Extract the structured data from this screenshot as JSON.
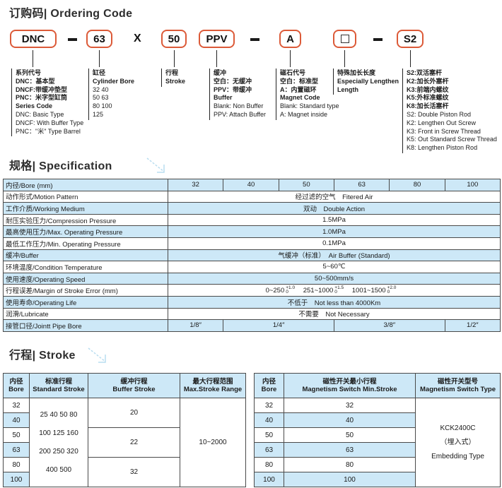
{
  "ordering": {
    "title": "订购码| Ordering Code",
    "code": {
      "p1": "DNC",
      "sep1": "–",
      "p2": "63",
      "sep_x": "X",
      "p3": "50",
      "p4": "PPV",
      "sep2": "–",
      "p5": "A",
      "p6": "□",
      "sep3": "–",
      "p7": "S2"
    },
    "columns": [
      {
        "lines": [
          {
            "text": "系列代号",
            "bold": true
          },
          {
            "text": "DNC：基本型",
            "bold": true
          },
          {
            "text": "DNCF:带缓冲垫型",
            "bold": true
          },
          {
            "text": "PNC：米字型缸筒",
            "bold": true
          },
          {
            "text": "Series Code",
            "bold": true
          },
          {
            "text": "DNC: Basic Type"
          },
          {
            "text": "DNCF: With Buffer Type"
          },
          {
            "text": "PNC：\"米\" Type Barrel"
          }
        ]
      },
      {
        "lines": [
          {
            "text": "缸径",
            "bold": true
          },
          {
            "text": "Cylinder Bore",
            "bold": true
          },
          {
            "text": "32  40"
          },
          {
            "text": "50  63"
          },
          {
            "text": "80  100"
          },
          {
            "text": "125"
          }
        ]
      },
      {
        "lines": [
          {
            "text": "行程",
            "bold": true
          },
          {
            "text": "Stroke",
            "bold": true
          }
        ]
      },
      {
        "lines": [
          {
            "text": "缓冲",
            "bold": true
          },
          {
            "text": "空白：无缓冲",
            "bold": true
          },
          {
            "text": "PPV：带缓冲",
            "bold": true
          },
          {
            "text": "Buffer",
            "bold": true
          },
          {
            "text": "Blank: Non Buffer"
          },
          {
            "text": "PPV: Attach Buffer"
          }
        ]
      },
      {
        "lines": [
          {
            "text": "磁石代号",
            "bold": true
          },
          {
            "text": "空白：标准型",
            "bold": true
          },
          {
            "text": "A：内置磁环",
            "bold": true
          },
          {
            "text": "Magnet Code",
            "bold": true
          },
          {
            "text": "Blank: Standard type"
          },
          {
            "text": "A: Magnet inside"
          }
        ]
      },
      {
        "lines": [
          {
            "text": "特殊加长长度",
            "bold": true
          },
          {
            "text": "Especially Lengthen",
            "bold": true
          },
          {
            "text": "Length",
            "bold": true
          }
        ]
      },
      {
        "lines": [
          {
            "text": "S2:双活塞杆",
            "bold": true
          },
          {
            "text": "K2:加长外塞杆",
            "bold": true
          },
          {
            "text": "K3:前端内螺纹",
            "bold": true
          },
          {
            "text": "K5:外标准螺纹",
            "bold": true
          },
          {
            "text": "K8:加长活塞杆",
            "bold": true
          },
          {
            "text": "S2: Double Piston Rod"
          },
          {
            "text": "K2: Lengthen Out Screw"
          },
          {
            "text": "K3: Front in Screw Thread"
          },
          {
            "text": "K5: Out Standard Screw Thread"
          },
          {
            "text": "K8: Lengthen Piston Rod"
          }
        ]
      }
    ]
  },
  "spec": {
    "title": "规格| Specification",
    "header_label": "内径/Bore (mm)",
    "bores": [
      "32",
      "40",
      "50",
      "63",
      "80",
      "100"
    ],
    "rows": [
      {
        "label": "动作形式/Motion Pattern",
        "value": "经过滤的空气　Fitered Air"
      },
      {
        "label": "工作介质/Working  Medium",
        "value": "双动　Double Action"
      },
      {
        "label": "耐压实验压力/Compression Pressure",
        "value": "1.5MPa"
      },
      {
        "label": "最高使用压力/Max. Operating Pressure",
        "value": "1.0MPa"
      },
      {
        "label": "最低工作压力/Min. Operating Pressure",
        "value": "0.1MPa"
      },
      {
        "label": "缓冲/Buffer",
        "value": "气缓冲（标准）　Air Buffer (Standard)"
      },
      {
        "label": "环境温度/Condition Temperature",
        "value": "5~60℃"
      },
      {
        "label": "使用速度/Operating Speed",
        "value": "50~500mm/s"
      },
      {
        "label": "使用寿命/Operating Life",
        "value": "不低于　Not less than 4000Km"
      },
      {
        "label": "润滑/Lubricate",
        "value": "不需要　Not Necessary"
      }
    ],
    "stroke_error": {
      "label": "行程误差/Margin of Stroke Error  (mm)",
      "r1": "0~250",
      "t1": "+1.0",
      "b1": "0",
      "r2": "251~1000",
      "t2": "+1.5",
      "b2": "0",
      "r3": "1001~1500",
      "t3": "+2.0",
      "b3": "0"
    },
    "pipe_row": {
      "label": "接管口径/Jointt Pipe Bore",
      "v1": "1/8″",
      "v2": "1/4″",
      "v3": "3/8″",
      "v4": "1/2″"
    }
  },
  "stroke": {
    "title": "行程| Stroke",
    "left": {
      "h_bore_zh": "内径",
      "h_bore_en": "Bore",
      "h_std_zh": "标准行程",
      "h_std_en": "Standard Stroke",
      "h_buf_zh": "缓冲行程",
      "h_buf_en": "Buffer Stroke",
      "h_max_zh": "最大行程范围",
      "h_max_en": "Max.Stroke Range",
      "bores": [
        "32",
        "40",
        "50",
        "63",
        "80",
        "100"
      ],
      "standard_stroke_lines": [
        "25 40 50 80",
        "100 125 160",
        "200 250 320",
        "400 500"
      ],
      "buffer_strokes": [
        "20",
        "22",
        "32"
      ],
      "max_range": "10~2000"
    },
    "right": {
      "h_bore_zh": "内径",
      "h_bore_en": "Bore",
      "h_min_zh": "磁性开关最小行程",
      "h_min_en": "Magnetism Switch Min.Stroke",
      "h_type_zh": "磁性开关型号",
      "h_type_en": "Magnetism Switch Type",
      "rows": [
        {
          "bore": "32",
          "min": "32"
        },
        {
          "bore": "40",
          "min": "40"
        },
        {
          "bore": "50",
          "min": "50"
        },
        {
          "bore": "63",
          "min": "63"
        },
        {
          "bore": "80",
          "min": "80"
        },
        {
          "bore": "100",
          "min": "100"
        }
      ],
      "switch_type_lines": [
        "KCK2400C",
        "（埋入式）",
        "Embedding Type"
      ]
    }
  },
  "colors": {
    "accent_orange": "#dc5a38",
    "table_blue": "#cde8f7",
    "arrow_blue": "#b9ddf0"
  }
}
